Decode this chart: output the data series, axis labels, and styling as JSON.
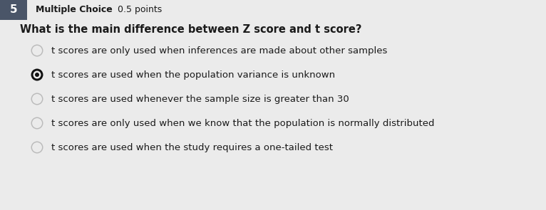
{
  "question_number": "5",
  "question_type": "Multiple Choice",
  "points": "0.5 points",
  "question": "What is the main difference between Z score and t score?",
  "options": [
    "t scores are only used when inferences are made about other samples",
    "t scores are used when the population variance is unknown",
    "t scores are used whenever the sample size is greater than 30",
    "t scores are only used when we know that the population is normally distributed",
    "t scores are used when the study requires a one-tailed test"
  ],
  "correct_index": 1,
  "bg_color": "#ebebeb",
  "header_bg": "#4a5568",
  "header_text_color": "#ffffff",
  "text_color": "#1a1a1a",
  "question_color": "#1a1a1a",
  "circle_selected_color": "#111111",
  "circle_unselected_color": "#bbbbbb",
  "circle_bg": "#ebebeb",
  "header_fontsize": 10,
  "type_fontsize": 9,
  "question_fontsize": 10.5,
  "option_fontsize": 9.5
}
